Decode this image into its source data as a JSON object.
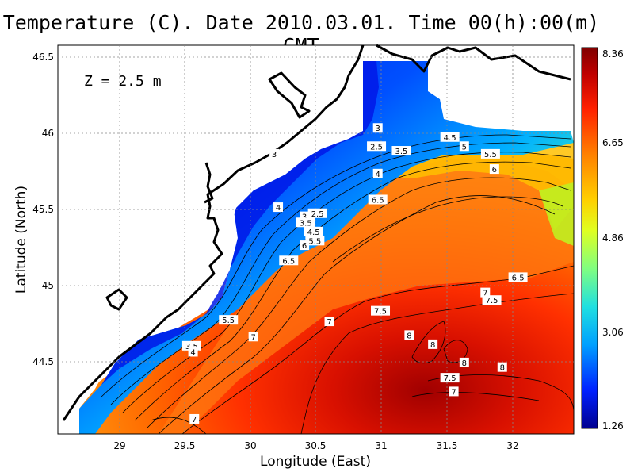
{
  "title": "Temperature (C). Date 2010.03.01. Time 00(h):00(m) GMT",
  "depth_label": "Z = 2.5 m",
  "x_axis_label": "Longitude (East)",
  "y_axis_label": "Latitude (North)",
  "x_ticks": [
    "29",
    "29.5",
    "30",
    "30.5",
    "31",
    "31.5",
    "32"
  ],
  "y_ticks": [
    "44.5",
    "45",
    "45.5",
    "46",
    "46.5"
  ],
  "colorbar": {
    "ticks": [
      "8.36",
      "6.65",
      "4.86",
      "3.06",
      "1.26"
    ],
    "min": 1.26,
    "max": 8.36,
    "colors": [
      "#00008f",
      "#0020ff",
      "#00a0ff",
      "#20e0e0",
      "#80ff80",
      "#e0ff20",
      "#ffd000",
      "#ff8000",
      "#ff2000",
      "#c00000",
      "#800000"
    ]
  },
  "map_data": {
    "x_range": [
      28.55,
      32.45
    ],
    "y_range": [
      44.05,
      46.55
    ],
    "contour_labels": [
      {
        "text": "3",
        "lon": 30.97,
        "lat": 46.03
      },
      {
        "text": "2.5",
        "lon": 30.96,
        "lat": 45.91
      },
      {
        "text": "3.5",
        "lon": 31.15,
        "lat": 45.88
      },
      {
        "text": "3",
        "lon": 30.18,
        "lat": 45.86
      },
      {
        "text": "4",
        "lon": 30.97,
        "lat": 45.73
      },
      {
        "text": "4.5",
        "lon": 31.52,
        "lat": 45.97
      },
      {
        "text": "5",
        "lon": 31.63,
        "lat": 45.91
      },
      {
        "text": "5.5",
        "lon": 31.83,
        "lat": 45.86
      },
      {
        "text": "6",
        "lon": 31.86,
        "lat": 45.76
      },
      {
        "text": "6.5",
        "lon": 30.97,
        "lat": 45.56
      },
      {
        "text": "4",
        "lon": 30.21,
        "lat": 45.51
      },
      {
        "text": "2.5",
        "lon": 30.51,
        "lat": 45.47
      },
      {
        "text": "3",
        "lon": 30.41,
        "lat": 45.45
      },
      {
        "text": "3.5",
        "lon": 30.42,
        "lat": 45.41
      },
      {
        "text": "4.5",
        "lon": 30.48,
        "lat": 45.35
      },
      {
        "text": "5.5",
        "lon": 30.49,
        "lat": 45.29
      },
      {
        "text": "6",
        "lon": 30.41,
        "lat": 45.26
      },
      {
        "text": "6.5",
        "lon": 30.29,
        "lat": 45.16
      },
      {
        "text": "6.5",
        "lon": 32.04,
        "lat": 45.05
      },
      {
        "text": "7",
        "lon": 31.79,
        "lat": 44.95
      },
      {
        "text": "7.5",
        "lon": 31.84,
        "lat": 44.9
      },
      {
        "text": "7.5",
        "lon": 30.99,
        "lat": 44.83
      },
      {
        "text": "7",
        "lon": 30.6,
        "lat": 44.76
      },
      {
        "text": "5.5",
        "lon": 29.83,
        "lat": 44.77
      },
      {
        "text": "7",
        "lon": 30.02,
        "lat": 44.66
      },
      {
        "text": "8",
        "lon": 31.21,
        "lat": 44.67
      },
      {
        "text": "3.5",
        "lon": 29.55,
        "lat": 44.6
      },
      {
        "text": "4",
        "lon": 29.56,
        "lat": 44.56
      },
      {
        "text": "8",
        "lon": 31.39,
        "lat": 44.61
      },
      {
        "text": "8",
        "lon": 31.63,
        "lat": 44.49
      },
      {
        "text": "8",
        "lon": 31.92,
        "lat": 44.46
      },
      {
        "text": "7.5",
        "lon": 31.52,
        "lat": 44.39
      },
      {
        "text": "7",
        "lon": 31.55,
        "lat": 44.3
      },
      {
        "text": "7",
        "lon": 29.57,
        "lat": 44.12
      }
    ]
  }
}
